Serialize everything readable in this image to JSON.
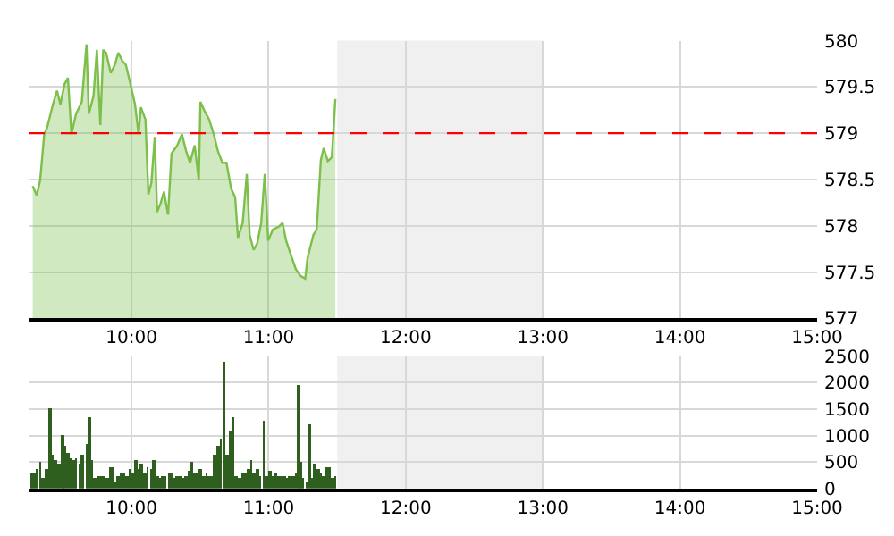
{
  "chart_data": [
    {
      "type": "area",
      "xlim": [
        9.25,
        15
      ],
      "xticks": [
        {
          "value": 10,
          "label": "10:00"
        },
        {
          "value": 11,
          "label": "11:00"
        },
        {
          "value": 12,
          "label": "12:00"
        },
        {
          "value": 13,
          "label": "13:00"
        },
        {
          "value": 14,
          "label": "14:00"
        },
        {
          "value": 15,
          "label": "15:00"
        }
      ],
      "ylim": [
        577,
        580
      ],
      "yticks": [
        577,
        577.5,
        578,
        578.5,
        579,
        579.5,
        580
      ],
      "grid": true,
      "bands": [
        {
          "axis": "x",
          "from": 11.5,
          "to": 13,
          "label": null,
          "color": "#f0f0f0"
        }
      ],
      "ref_lines": [
        {
          "axis": "y",
          "value": 579,
          "label": null,
          "color": "#ff0000",
          "line_style": "dashed"
        }
      ],
      "series": [
        {
          "color": "#7cbf4a",
          "x": [
            9.28,
            9.309,
            9.334,
            9.364,
            9.385,
            9.427,
            9.457,
            9.482,
            9.512,
            9.537,
            9.562,
            9.596,
            9.638,
            9.672,
            9.689,
            9.723,
            9.748,
            9.773,
            9.794,
            9.815,
            9.849,
            9.879,
            9.904,
            9.934,
            9.959,
            9.993,
            10.026,
            10.052,
            10.069,
            10.102,
            10.123,
            10.145,
            10.17,
            10.187,
            10.212,
            10.237,
            10.267,
            10.292,
            10.334,
            10.368,
            10.398,
            10.427,
            10.461,
            10.491,
            10.503,
            10.533,
            10.566,
            10.6,
            10.63,
            10.663,
            10.693,
            10.727,
            10.756,
            10.777,
            10.811,
            10.841,
            10.862,
            10.891,
            10.917,
            10.946,
            10.972,
            10.997,
            11.031,
            11.073,
            11.102,
            11.128,
            11.157,
            11.199,
            11.233,
            11.267,
            11.284,
            11.326,
            11.351,
            11.381,
            11.402,
            11.432,
            11.461,
            11.487
          ],
          "values": [
            578.43,
            578.33,
            578.49,
            578.99,
            579.06,
            579.31,
            579.46,
            579.31,
            579.53,
            579.6,
            578.99,
            579.21,
            579.34,
            579.96,
            579.21,
            579.4,
            579.9,
            579.09,
            579.9,
            579.87,
            579.65,
            579.74,
            579.87,
            579.78,
            579.74,
            579.53,
            579.31,
            578.99,
            579.28,
            579.15,
            578.34,
            578.46,
            578.96,
            578.15,
            578.24,
            578.37,
            578.12,
            578.78,
            578.87,
            578.99,
            578.81,
            578.68,
            578.87,
            578.49,
            579.34,
            579.24,
            579.15,
            578.99,
            578.81,
            578.68,
            578.68,
            578.4,
            578.31,
            577.87,
            578.03,
            578.56,
            577.9,
            577.74,
            577.81,
            578.03,
            578.56,
            577.84,
            577.96,
            577.99,
            578.03,
            577.84,
            577.71,
            577.53,
            577.46,
            577.43,
            577.65,
            577.9,
            577.96,
            578.71,
            578.84,
            578.7,
            578.74,
            579.37
          ]
        }
      ]
    },
    {
      "type": "bar",
      "xlim": [
        9.25,
        15
      ],
      "xticks": [
        {
          "value": 10,
          "label": "10:00"
        },
        {
          "value": 11,
          "label": "11:00"
        },
        {
          "value": 12,
          "label": "12:00"
        },
        {
          "value": 13,
          "label": "13:00"
        },
        {
          "value": 14,
          "label": "14:00"
        },
        {
          "value": 15,
          "label": "15:00"
        }
      ],
      "ylim": [
        0,
        2500
      ],
      "yticks": [
        0,
        500,
        1000,
        1500,
        2000,
        2500
      ],
      "grid": true,
      "bands": [
        {
          "axis": "x",
          "from": 11.5,
          "to": 13,
          "label": null,
          "color": "#f0f0f0"
        }
      ],
      "series": [
        {
          "color": "#2f5f1f",
          "x": [
            9.267,
            9.288,
            9.309,
            9.334,
            9.355,
            9.377,
            9.41,
            9.427,
            9.448,
            9.469,
            9.495,
            9.512,
            9.533,
            9.554,
            9.575,
            9.596,
            9.621,
            9.642,
            9.672,
            9.693,
            9.714,
            9.735,
            9.756,
            9.777,
            9.799,
            9.82,
            9.841,
            9.862,
            9.883,
            9.904,
            9.925,
            9.946,
            9.967,
            9.988,
            10.009,
            10.031,
            10.052,
            10.073,
            10.094,
            10.115,
            10.145,
            10.166,
            10.187,
            10.208,
            10.229,
            10.25,
            10.271,
            10.292,
            10.313,
            10.334,
            10.355,
            10.377,
            10.398,
            10.419,
            10.44,
            10.461,
            10.482,
            10.503,
            10.524,
            10.545,
            10.566,
            10.588,
            10.609,
            10.63,
            10.651,
            10.68,
            10.701,
            10.723,
            10.744,
            10.765,
            10.786,
            10.807,
            10.828,
            10.853,
            10.874,
            10.896,
            10.917,
            10.938,
            10.967,
            10.988,
            11.009,
            11.031,
            11.052,
            11.073,
            11.094,
            11.115,
            11.136,
            11.157,
            11.178,
            11.199,
            11.216,
            11.233,
            11.254,
            11.275,
            11.297,
            11.318,
            11.339,
            11.36,
            11.381,
            11.402,
            11.423,
            11.444,
            11.466,
            11.487
          ],
          "values": [
            310,
            310,
            360,
            500,
            200,
            360,
            1510,
            640,
            530,
            470,
            1020,
            800,
            690,
            580,
            530,
            580,
            470,
            640,
            860,
            1350,
            530,
            200,
            250,
            250,
            250,
            200,
            420,
            420,
            140,
            250,
            310,
            310,
            250,
            360,
            310,
            550,
            360,
            470,
            310,
            420,
            360,
            530,
            250,
            200,
            250,
            250,
            310,
            290,
            200,
            250,
            220,
            200,
            250,
            330,
            500,
            310,
            290,
            360,
            250,
            310,
            220,
            250,
            640,
            800,
            960,
            2390,
            640,
            1070,
            1350,
            250,
            200,
            310,
            310,
            360,
            530,
            290,
            360,
            250,
            1290,
            250,
            330,
            250,
            290,
            230,
            250,
            220,
            200,
            220,
            250,
            290,
            1950,
            500,
            200,
            140,
            1210,
            200,
            470,
            360,
            310,
            250,
            400,
            400,
            200,
            250
          ]
        }
      ]
    }
  ]
}
